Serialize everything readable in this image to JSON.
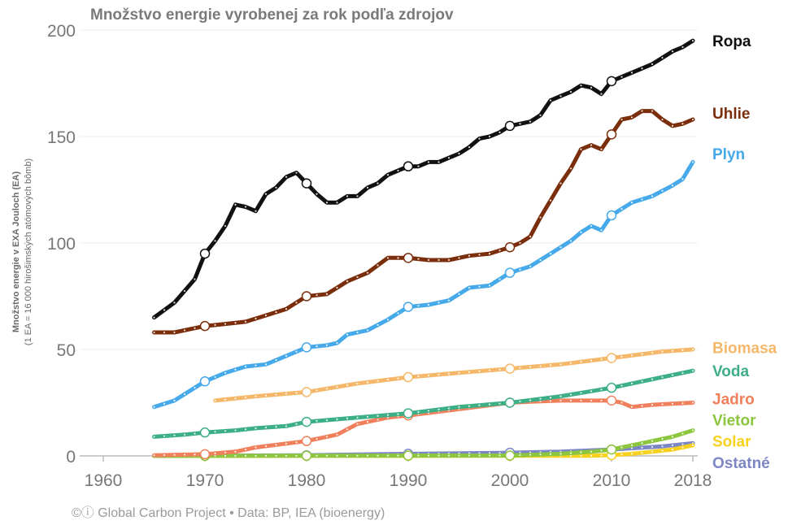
{
  "chart_data": {
    "type": "line",
    "title": "Množstvo energie vyrobenej za rok podľa zdrojov",
    "ylabel": "Množstvo energie v EXA Jouloch (EA)",
    "ylabel_note": "(1 EA = 16 000 hirošimských atómových bômb)",
    "xlim": [
      1958,
      2019
    ],
    "ylim": [
      0,
      200
    ],
    "x_ticks": [
      "1960",
      "1970",
      "1980",
      "1990",
      "2000",
      "2010",
      "2018"
    ],
    "y_ticks": [
      "0",
      "50",
      "100",
      "150",
      "200"
    ],
    "grid": "horizontal",
    "legend_position": "right",
    "footer": "©ⓘ Global Carbon Project  •  Data: BP, IEA (bioenergy)",
    "series": [
      {
        "name": "Ropa",
        "color": "#111111",
        "label_y": 195,
        "points": [
          [
            1965,
            65
          ],
          [
            1967,
            72
          ],
          [
            1969,
            83
          ],
          [
            1970,
            95
          ],
          [
            1971,
            101
          ],
          [
            1972,
            108
          ],
          [
            1973,
            118
          ],
          [
            1974,
            117
          ],
          [
            1975,
            115
          ],
          [
            1976,
            123
          ],
          [
            1977,
            126
          ],
          [
            1978,
            131
          ],
          [
            1979,
            133
          ],
          [
            1980,
            128
          ],
          [
            1981,
            123
          ],
          [
            1982,
            119
          ],
          [
            1983,
            119
          ],
          [
            1984,
            122
          ],
          [
            1985,
            122
          ],
          [
            1986,
            126
          ],
          [
            1987,
            128
          ],
          [
            1988,
            132
          ],
          [
            1989,
            134
          ],
          [
            1990,
            136
          ],
          [
            1991,
            136
          ],
          [
            1992,
            138
          ],
          [
            1993,
            138
          ],
          [
            1994,
            140
          ],
          [
            1995,
            142
          ],
          [
            1996,
            145
          ],
          [
            1997,
            149
          ],
          [
            1998,
            150
          ],
          [
            1999,
            152
          ],
          [
            2000,
            155
          ],
          [
            2001,
            156
          ],
          [
            2002,
            157
          ],
          [
            2003,
            160
          ],
          [
            2004,
            167
          ],
          [
            2005,
            169
          ],
          [
            2006,
            171
          ],
          [
            2007,
            174
          ],
          [
            2008,
            173
          ],
          [
            2009,
            170
          ],
          [
            2010,
            176
          ],
          [
            2011,
            178
          ],
          [
            2012,
            180
          ],
          [
            2013,
            182
          ],
          [
            2014,
            184
          ],
          [
            2015,
            187
          ],
          [
            2016,
            190
          ],
          [
            2017,
            192
          ],
          [
            2018,
            195
          ]
        ]
      },
      {
        "name": "Uhlie",
        "color": "#7a2e0c",
        "label_y": 161,
        "points": [
          [
            1965,
            58
          ],
          [
            1967,
            58
          ],
          [
            1970,
            61
          ],
          [
            1972,
            62
          ],
          [
            1974,
            63
          ],
          [
            1976,
            66
          ],
          [
            1978,
            69
          ],
          [
            1980,
            75
          ],
          [
            1982,
            76
          ],
          [
            1984,
            82
          ],
          [
            1986,
            86
          ],
          [
            1988,
            93
          ],
          [
            1990,
            93
          ],
          [
            1992,
            92
          ],
          [
            1994,
            92
          ],
          [
            1996,
            94
          ],
          [
            1998,
            95
          ],
          [
            2000,
            98
          ],
          [
            2001,
            100
          ],
          [
            2002,
            103
          ],
          [
            2003,
            112
          ],
          [
            2004,
            120
          ],
          [
            2005,
            128
          ],
          [
            2006,
            135
          ],
          [
            2007,
            144
          ],
          [
            2008,
            146
          ],
          [
            2009,
            144
          ],
          [
            2010,
            151
          ],
          [
            2011,
            158
          ],
          [
            2012,
            159
          ],
          [
            2013,
            162
          ],
          [
            2014,
            162
          ],
          [
            2015,
            158
          ],
          [
            2016,
            155
          ],
          [
            2017,
            156
          ],
          [
            2018,
            158
          ]
        ]
      },
      {
        "name": "Plyn",
        "color": "#45a9ea",
        "label_y": 142,
        "points": [
          [
            1965,
            23
          ],
          [
            1967,
            26
          ],
          [
            1970,
            35
          ],
          [
            1972,
            39
          ],
          [
            1974,
            42
          ],
          [
            1976,
            43
          ],
          [
            1978,
            47
          ],
          [
            1980,
            51
          ],
          [
            1982,
            52
          ],
          [
            1983,
            53
          ],
          [
            1984,
            57
          ],
          [
            1986,
            59
          ],
          [
            1988,
            64
          ],
          [
            1990,
            70
          ],
          [
            1992,
            71
          ],
          [
            1994,
            73
          ],
          [
            1996,
            79
          ],
          [
            1998,
            80
          ],
          [
            2000,
            86
          ],
          [
            2002,
            89
          ],
          [
            2004,
            95
          ],
          [
            2006,
            101
          ],
          [
            2007,
            105
          ],
          [
            2008,
            108
          ],
          [
            2009,
            106
          ],
          [
            2010,
            113
          ],
          [
            2012,
            119
          ],
          [
            2014,
            122
          ],
          [
            2016,
            127
          ],
          [
            2017,
            130
          ],
          [
            2018,
            138
          ]
        ]
      },
      {
        "name": "Biomasa",
        "color": "#f5b86a",
        "label_y": 51,
        "points": [
          [
            1971,
            26
          ],
          [
            1975,
            28
          ],
          [
            1980,
            30
          ],
          [
            1985,
            34
          ],
          [
            1990,
            37
          ],
          [
            1995,
            39
          ],
          [
            2000,
            41
          ],
          [
            2005,
            43
          ],
          [
            2010,
            46
          ],
          [
            2015,
            49
          ],
          [
            2018,
            50
          ]
        ]
      },
      {
        "name": "Voda",
        "color": "#3caf86",
        "label_y": 40,
        "points": [
          [
            1965,
            9
          ],
          [
            1968,
            10
          ],
          [
            1970,
            11
          ],
          [
            1973,
            12
          ],
          [
            1975,
            13
          ],
          [
            1978,
            14
          ],
          [
            1980,
            16
          ],
          [
            1985,
            18
          ],
          [
            1990,
            20
          ],
          [
            1995,
            23
          ],
          [
            2000,
            25
          ],
          [
            2005,
            28
          ],
          [
            2010,
            32
          ],
          [
            2015,
            37
          ],
          [
            2018,
            40
          ]
        ]
      },
      {
        "name": "Jadro",
        "color": "#f0805b",
        "label_y": 27,
        "points": [
          [
            1965,
            0.3
          ],
          [
            1970,
            0.8
          ],
          [
            1973,
            2
          ],
          [
            1975,
            4
          ],
          [
            1980,
            7
          ],
          [
            1983,
            10
          ],
          [
            1985,
            15
          ],
          [
            1988,
            18
          ],
          [
            1990,
            19
          ],
          [
            1995,
            22
          ],
          [
            2000,
            25
          ],
          [
            2002,
            25.5
          ],
          [
            2005,
            26
          ],
          [
            2008,
            26
          ],
          [
            2010,
            26
          ],
          [
            2011,
            25
          ],
          [
            2012,
            23
          ],
          [
            2014,
            24
          ],
          [
            2016,
            24.5
          ],
          [
            2018,
            25
          ]
        ]
      },
      {
        "name": "Vietor",
        "color": "#8cc63f",
        "label_y": 17,
        "points": [
          [
            1965,
            0
          ],
          [
            2000,
            0.2
          ],
          [
            2005,
            1
          ],
          [
            2008,
            2
          ],
          [
            2010,
            3
          ],
          [
            2012,
            5
          ],
          [
            2014,
            7
          ],
          [
            2016,
            9
          ],
          [
            2018,
            12
          ]
        ]
      },
      {
        "name": "Solar",
        "color": "#f7d11f",
        "label_y": 7,
        "points": [
          [
            1965,
            0
          ],
          [
            2008,
            0.1
          ],
          [
            2010,
            0.4
          ],
          [
            2012,
            1
          ],
          [
            2014,
            2
          ],
          [
            2016,
            3
          ],
          [
            2018,
            5
          ]
        ]
      },
      {
        "name": "Ostatné",
        "color": "#7c86c4",
        "label_y": -3,
        "points": [
          [
            1965,
            0
          ],
          [
            1980,
            0.3
          ],
          [
            1990,
            1
          ],
          [
            2000,
            1.5
          ],
          [
            2005,
            2
          ],
          [
            2010,
            3
          ],
          [
            2015,
            4.5
          ],
          [
            2018,
            6
          ]
        ]
      }
    ]
  }
}
